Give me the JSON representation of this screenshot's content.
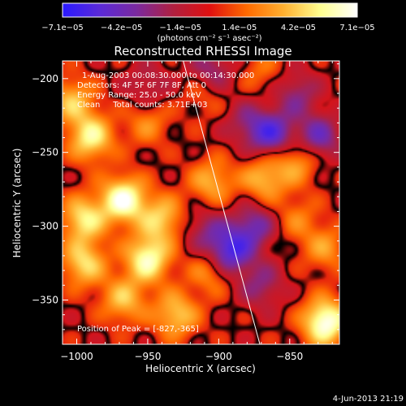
{
  "chart_data": {
    "type": "heatmap",
    "title": "Reconstructed RHESSI Image",
    "xlabel": "Heliocentric X (arcsec)",
    "ylabel": "Heliocentric Y (arcsec)",
    "xlim": [
      -1010,
      -815
    ],
    "ylim": [
      -380,
      -188
    ],
    "x_ticks": [
      -1000,
      -950,
      -900,
      -850
    ],
    "y_ticks": [
      -200,
      -250,
      -300,
      -350
    ],
    "x_tick_labels": [
      "−1000",
      "−950",
      "−900",
      "−850"
    ],
    "y_tick_labels": [
      "−200",
      "−250",
      "−300",
      "−350"
    ],
    "colorbar": {
      "range": [
        -7.1e-05,
        7.1e-05
      ],
      "tick_labels": [
        "−7.1e−05",
        "−4.2e−05",
        "−1.4e−05",
        "1.4e−05",
        "4.2e−05",
        "7.1e−05"
      ],
      "unit_label": "(photons cm⁻² s⁻¹ asec⁻²)",
      "colors": [
        "#2a1aff",
        "#5a2ad8",
        "#7a2aa0",
        "#b02040",
        "#e01010",
        "#ff6a00",
        "#ffb030",
        "#ffff90",
        "#ffffff"
      ]
    },
    "annotations": [
      "1-Aug-2003 00:08:30.000 to 00:14:30.000",
      "Detectors: 4F 5F 6F 7F 8F, Att 0",
      "Energy Range: 25.0 - 50.0 keV",
      "Clean     Total counts: 3.71E+03"
    ],
    "peak_label": "Position of Peak = [-827,-365]",
    "peak": {
      "x": -827,
      "y": -365
    },
    "limb_line": {
      "x": [
        -925,
        -871
      ],
      "y": [
        -188,
        -380
      ]
    },
    "sources": [
      {
        "x": -950,
        "y": -322,
        "v": 0.85
      },
      {
        "x": -967,
        "y": -282,
        "v": 0.95
      },
      {
        "x": -940,
        "y": -295,
        "v": 0.6
      },
      {
        "x": -995,
        "y": -295,
        "v": 0.7
      },
      {
        "x": -990,
        "y": -240,
        "v": 0.75
      },
      {
        "x": -995,
        "y": -325,
        "v": 0.65
      },
      {
        "x": -1003,
        "y": -215,
        "v": 0.55
      },
      {
        "x": -950,
        "y": -230,
        "v": 0.35
      },
      {
        "x": -905,
        "y": -270,
        "v": 0.5
      },
      {
        "x": -905,
        "y": -330,
        "v": 0.45
      },
      {
        "x": -930,
        "y": -360,
        "v": 0.6
      },
      {
        "x": -967,
        "y": -350,
        "v": 0.55
      },
      {
        "x": -868,
        "y": -268,
        "v": 0.55
      },
      {
        "x": -845,
        "y": -255,
        "v": 0.5
      },
      {
        "x": -825,
        "y": -315,
        "v": 0.4
      },
      {
        "x": -825,
        "y": -365,
        "v": 1.0
      },
      {
        "x": -845,
        "y": -295,
        "v": 0.3
      },
      {
        "x": -910,
        "y": -210,
        "v": 0.25
      },
      {
        "x": -870,
        "y": -195,
        "v": 0.25
      },
      {
        "x": -905,
        "y": -195,
        "v": -0.45
      },
      {
        "x": -880,
        "y": -230,
        "v": -0.35
      },
      {
        "x": -862,
        "y": -238,
        "v": -0.7
      },
      {
        "x": -830,
        "y": -240,
        "v": -0.6
      },
      {
        "x": -845,
        "y": -210,
        "v": -0.4
      },
      {
        "x": -875,
        "y": -300,
        "v": -0.55
      },
      {
        "x": -893,
        "y": -318,
        "v": -0.85
      },
      {
        "x": -870,
        "y": -340,
        "v": -0.4
      },
      {
        "x": -910,
        "y": -302,
        "v": -0.35
      },
      {
        "x": -950,
        "y": -205,
        "v": -0.3
      }
    ],
    "grid": false
  },
  "footer": {
    "date": "4-Jun-2013 21:19"
  }
}
